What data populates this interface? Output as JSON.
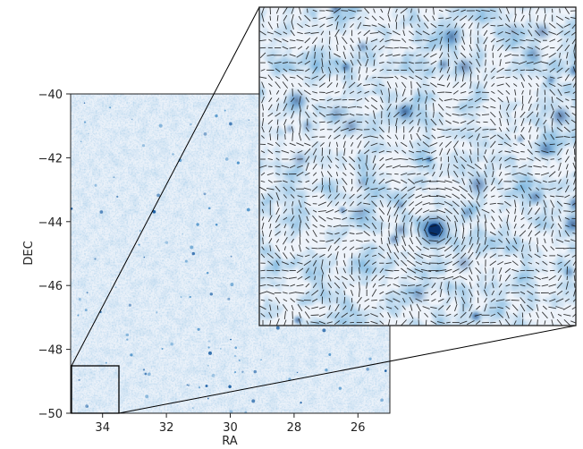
{
  "chart_data": [
    {
      "type": "heatmap",
      "title": "",
      "xlabel": "RA",
      "ylabel": "DEC",
      "xlim": [
        35,
        25
      ],
      "ylim": [
        -50,
        -40
      ],
      "x_ticks": [
        34,
        32,
        30,
        28,
        26
      ],
      "y_ticks": [
        -40,
        -42,
        -44,
        -46,
        -48,
        -50
      ],
      "x_tick_labels": [
        "34",
        "32",
        "30",
        "28",
        "26"
      ],
      "y_tick_labels": [
        "−40",
        "−42",
        "−44",
        "−46",
        "−48",
        "−50"
      ],
      "colormap": "Blues",
      "inset_region": {
        "ra": [
          35,
          33.5
        ],
        "dec": [
          -50,
          -48.5
        ]
      },
      "grid": false
    },
    {
      "type": "heatmap",
      "subtype": "zoomed inset with shear/orientation whisker field",
      "title": "",
      "xlabel": "",
      "ylabel": "",
      "colormap": "Blues",
      "region": {
        "ra": [
          35,
          33.5
        ],
        "dec": [
          -50,
          -48.5
        ]
      },
      "has_whiskers": true,
      "grid": false
    }
  ],
  "colors": {
    "map_light": "#e9f0f8",
    "map_dark": "#08306b",
    "whisker": "#111111",
    "axes": "#222222"
  }
}
